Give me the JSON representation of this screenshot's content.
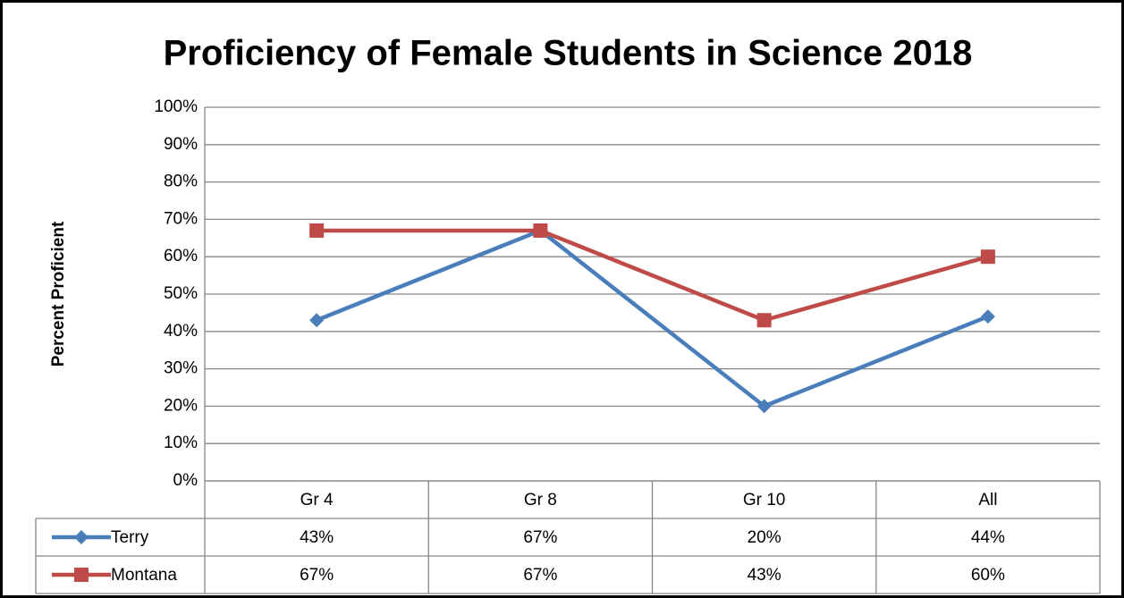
{
  "chart_data": {
    "type": "line",
    "title": "Proficiency of Female Students in Science 2018",
    "y_label": "Percent Proficient",
    "categories": [
      "Gr 4",
      "Gr 8",
      "Gr 10",
      "All"
    ],
    "series": [
      {
        "name": "Terry",
        "color": "#4a7ebb",
        "marker": "diamond",
        "values": [
          43,
          67,
          20,
          44
        ],
        "value_labels": [
          "43%",
          "67%",
          "20%",
          "44%"
        ]
      },
      {
        "name": "Montana",
        "color": "#be4b48",
        "marker": "square",
        "values": [
          67,
          67,
          43,
          60
        ],
        "value_labels": [
          "67%",
          "67%",
          "43%",
          "60%"
        ]
      }
    ],
    "ylim": [
      0,
      100
    ],
    "yticks": [
      {
        "value": 0,
        "label": "0%"
      },
      {
        "value": 10,
        "label": "10%"
      },
      {
        "value": 20,
        "label": "20%"
      },
      {
        "value": 30,
        "label": "30%"
      },
      {
        "value": 40,
        "label": "40%"
      },
      {
        "value": 50,
        "label": "50%"
      },
      {
        "value": 60,
        "label": "60%"
      },
      {
        "value": 70,
        "label": "70%"
      },
      {
        "value": 80,
        "label": "80%"
      },
      {
        "value": 90,
        "label": "90%"
      },
      {
        "value": 100,
        "label": "100%"
      }
    ],
    "grid": true
  }
}
